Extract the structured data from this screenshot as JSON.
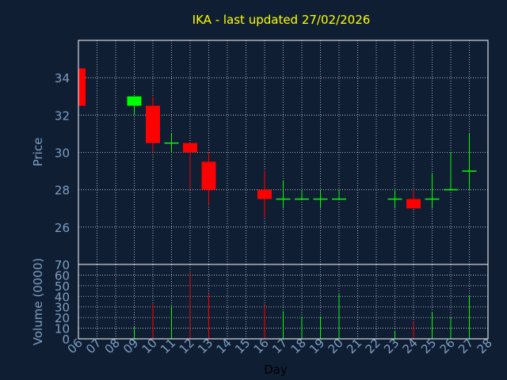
{
  "chart_data": [
    {
      "type": "candlestick",
      "title": "IKA - last updated 27/02/2026",
      "ylabel": "Price",
      "ylim": [
        24.0,
        36.0
      ],
      "yticks": [
        26,
        28,
        30,
        32,
        34
      ],
      "grid": true,
      "up_color": "#00ff00",
      "down_color": "#ff0000",
      "candles": [
        {
          "day": "06",
          "open": 34.5,
          "high": 34.5,
          "low": 32.5,
          "close": 32.5
        },
        {
          "day": "09",
          "open": 32.5,
          "high": 33.0,
          "low": 32.0,
          "close": 33.0
        },
        {
          "day": "10",
          "open": 32.5,
          "high": 33.0,
          "low": 30.0,
          "close": 30.5
        },
        {
          "day": "11",
          "open": 30.5,
          "high": 31.0,
          "low": 30.0,
          "close": 30.5
        },
        {
          "day": "12",
          "open": 30.5,
          "high": 30.5,
          "low": 28.0,
          "close": 30.0
        },
        {
          "day": "13",
          "open": 29.5,
          "high": 30.0,
          "low": 27.2,
          "close": 28.0
        },
        {
          "day": "16",
          "open": 28.0,
          "high": 29.0,
          "low": 26.5,
          "close": 27.5
        },
        {
          "day": "17",
          "open": 27.5,
          "high": 28.5,
          "low": 27.0,
          "close": 27.5
        },
        {
          "day": "18",
          "open": 27.5,
          "high": 28.0,
          "low": 27.5,
          "close": 27.5
        },
        {
          "day": "19",
          "open": 27.5,
          "high": 28.0,
          "low": 27.0,
          "close": 27.5
        },
        {
          "day": "20",
          "open": 27.5,
          "high": 28.0,
          "low": 27.5,
          "close": 27.5
        },
        {
          "day": "23",
          "open": 27.5,
          "high": 28.0,
          "low": 27.0,
          "close": 27.5
        },
        {
          "day": "24",
          "open": 27.5,
          "high": 28.0,
          "low": 27.0,
          "close": 27.0
        },
        {
          "day": "25",
          "open": 27.5,
          "high": 28.9,
          "low": 27.0,
          "close": 27.5
        },
        {
          "day": "26",
          "open": 28.0,
          "high": 30.0,
          "low": 28.0,
          "close": 28.0
        },
        {
          "day": "27",
          "open": 29.0,
          "high": 31.0,
          "low": 28.0,
          "close": 29.0
        }
      ]
    },
    {
      "type": "bar",
      "ylabel": "Volume (0000)",
      "xlabel": "Day",
      "ylim": [
        0,
        70
      ],
      "yticks": [
        0,
        10,
        20,
        30,
        40,
        50,
        60,
        70
      ],
      "grid": true,
      "categories": [
        "06",
        "07",
        "08",
        "09",
        "10",
        "11",
        "12",
        "13",
        "14",
        "15",
        "16",
        "17",
        "18",
        "19",
        "20",
        "21",
        "22",
        "23",
        "24",
        "25",
        "26",
        "27",
        "28"
      ],
      "bars": [
        {
          "day": "09",
          "value": 11,
          "color": "#00ff00"
        },
        {
          "day": "10",
          "value": 33,
          "color": "#ff0000"
        },
        {
          "day": "11",
          "value": 31,
          "color": "#00ff00"
        },
        {
          "day": "12",
          "value": 62,
          "color": "#ff0000"
        },
        {
          "day": "13",
          "value": 42,
          "color": "#ff0000"
        },
        {
          "day": "16",
          "value": 31,
          "color": "#ff0000"
        },
        {
          "day": "17",
          "value": 26,
          "color": "#00ff00"
        },
        {
          "day": "18",
          "value": 21,
          "color": "#00ff00"
        },
        {
          "day": "19",
          "value": 21,
          "color": "#00ff00"
        },
        {
          "day": "20",
          "value": 42,
          "color": "#00ff00"
        },
        {
          "day": "23",
          "value": 7,
          "color": "#00ff00"
        },
        {
          "day": "24",
          "value": 16,
          "color": "#ff0000"
        },
        {
          "day": "25",
          "value": 25,
          "color": "#00ff00"
        },
        {
          "day": "26",
          "value": 20,
          "color": "#00ff00"
        },
        {
          "day": "27",
          "value": 40,
          "color": "#00ff00"
        }
      ]
    }
  ],
  "colors": {
    "background": "#0f1e33",
    "title": "#ffff00",
    "axis_text": "#7f9fc0",
    "frame": "#ffffff",
    "grid": "#ffffff"
  }
}
